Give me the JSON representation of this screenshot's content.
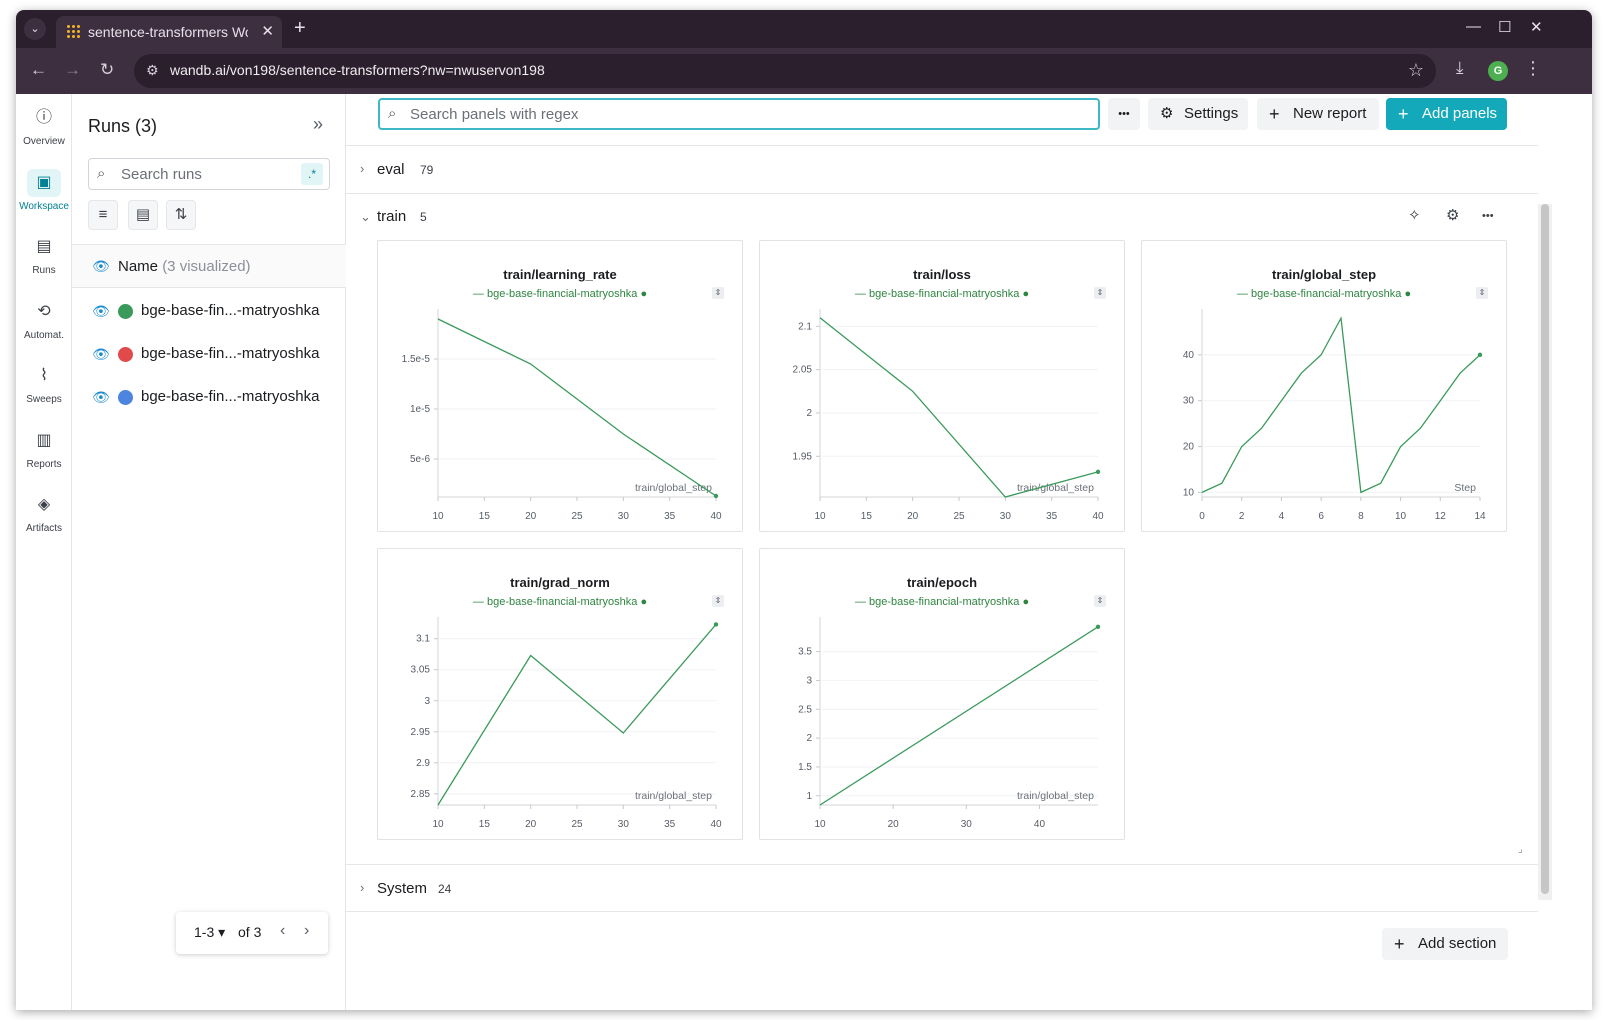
{
  "browser": {
    "tab_title": "sentence-transformers Workspace",
    "url": "wandb.ai/von198/sentence-transformers?nw=nwuservon198",
    "profile_initial": "G"
  },
  "rail": {
    "items": [
      {
        "label": "Overview",
        "icon": "info-icon"
      },
      {
        "label": "Workspace",
        "icon": "workspace-icon",
        "active": true
      },
      {
        "label": "Runs",
        "icon": "table-icon"
      },
      {
        "label": "Automat.",
        "icon": "automation-icon"
      },
      {
        "label": "Sweeps",
        "icon": "broom-icon"
      },
      {
        "label": "Reports",
        "icon": "clipboard-icon"
      },
      {
        "label": "Artifacts",
        "icon": "layers-icon"
      }
    ]
  },
  "runs_panel": {
    "title": "Runs (3)",
    "search_placeholder": "Search runs",
    "regex_label": ".*",
    "header_name": "Name",
    "header_sub": "(3 visualized)",
    "runs": [
      {
        "name": "bge-base-fin...-matryoshka",
        "color": "#3a9a5b"
      },
      {
        "name": "bge-base-fin...-matryoshka",
        "color": "#e04a4a"
      },
      {
        "name": "bge-base-fin...-matryoshka",
        "color": "#4c84e0"
      }
    ],
    "pager": {
      "range": "1-3",
      "of": "of 3"
    }
  },
  "toolbar": {
    "search_placeholder": "Search panels with regex",
    "more_label": "•••",
    "settings_label": "Settings",
    "new_report_label": "New report",
    "add_panels_label": "Add panels"
  },
  "sections": [
    {
      "name": "eval",
      "count": "79",
      "expanded": false
    },
    {
      "name": "train",
      "count": "5",
      "expanded": true
    },
    {
      "name": "System",
      "count": "24",
      "expanded": false
    }
  ],
  "add_section_label": "Add section",
  "legend_label": "bge-base-financial-matryoshka",
  "line_color": "#3a9a5b",
  "chart_data": [
    {
      "type": "line",
      "title": "train/learning_rate",
      "xlabel": "train/global_step",
      "x": [
        10,
        20,
        30,
        40
      ],
      "y": [
        1.9e-05,
        1.45e-05,
        7.5e-06,
        1.3e-06
      ],
      "xlim": [
        10,
        40
      ],
      "ylim": [
        1.2e-06,
        2e-05
      ],
      "xticks": [
        10,
        15,
        20,
        25,
        30,
        35,
        40
      ],
      "yticks": [
        5e-06,
        1e-05,
        1.5e-05
      ],
      "yticklabels": [
        "5e-6",
        "1e-5",
        "1.5e-5"
      ],
      "series": [
        {
          "name": "bge-base-financial-matryoshka"
        }
      ]
    },
    {
      "type": "line",
      "title": "train/loss",
      "xlabel": "train/global_step",
      "x": [
        10,
        20,
        30,
        40
      ],
      "y": [
        2.11,
        2.025,
        1.903,
        1.932
      ],
      "xlim": [
        10,
        40
      ],
      "ylim": [
        1.903,
        2.12
      ],
      "xticks": [
        10,
        15,
        20,
        25,
        30,
        35,
        40
      ],
      "yticks": [
        1.95,
        2,
        2.05,
        2.1
      ],
      "yticklabels": [
        "1.95",
        "2",
        "2.05",
        "2.1"
      ],
      "series": [
        {
          "name": "bge-base-financial-matryoshka"
        }
      ]
    },
    {
      "type": "line",
      "title": "train/global_step",
      "xlabel": "Step",
      "x": [
        0,
        1,
        2,
        3,
        4,
        5,
        6,
        7,
        8,
        9,
        10,
        11,
        12,
        13,
        14
      ],
      "y": [
        10,
        12,
        20,
        24,
        30,
        36,
        40,
        48,
        10,
        12,
        20,
        24,
        30,
        36,
        40
      ],
      "xlim": [
        0,
        14
      ],
      "ylim": [
        9,
        50
      ],
      "xticks": [
        0,
        2,
        4,
        6,
        8,
        10,
        12,
        14
      ],
      "yticks": [
        10,
        20,
        30,
        40
      ],
      "yticklabels": [
        "10",
        "20",
        "30",
        "40"
      ],
      "series": [
        {
          "name": "bge-base-financial-matryoshka"
        }
      ]
    },
    {
      "type": "line",
      "title": "train/grad_norm",
      "xlabel": "train/global_step",
      "x": [
        10,
        20,
        30,
        40
      ],
      "y": [
        2.832,
        3.073,
        2.948,
        3.123
      ],
      "xlim": [
        10,
        40
      ],
      "ylim": [
        2.832,
        3.135
      ],
      "xticks": [
        10,
        15,
        20,
        25,
        30,
        35,
        40
      ],
      "yticks": [
        2.85,
        2.9,
        2.95,
        3,
        3.05,
        3.1
      ],
      "yticklabels": [
        "2.85",
        "2.9",
        "2.95",
        "3",
        "3.05",
        "3.1"
      ],
      "series": [
        {
          "name": "bge-base-financial-matryoshka"
        }
      ]
    },
    {
      "type": "line",
      "title": "train/epoch",
      "xlabel": "train/global_step",
      "x": [
        10,
        48
      ],
      "y": [
        0.84,
        3.93
      ],
      "xlim": [
        10,
        48
      ],
      "ylim": [
        0.84,
        4.1
      ],
      "xticks": [
        10,
        20,
        30,
        40
      ],
      "yticks": [
        1,
        1.5,
        2,
        2.5,
        3,
        3.5
      ],
      "yticklabels": [
        "1",
        "1.5",
        "2",
        "2.5",
        "3",
        "3.5"
      ],
      "series": [
        {
          "name": "bge-base-financial-matryoshka"
        }
      ]
    }
  ]
}
